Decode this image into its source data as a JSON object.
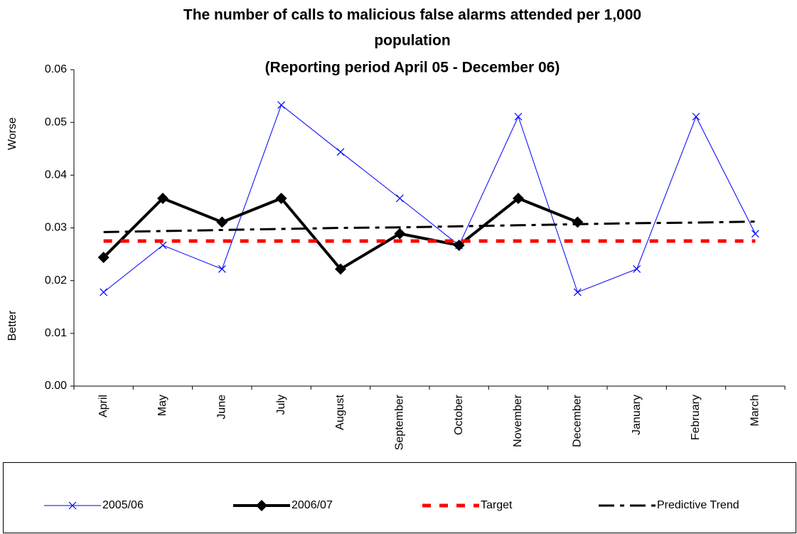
{
  "chart_data": {
    "type": "line",
    "title": [
      "The number of calls to malicious false alarms attended per 1,000",
      "population",
      "(Reporting period  April 05 - December 06)"
    ],
    "annotations": [
      "Worse",
      "Better"
    ],
    "categories": [
      "April",
      "May",
      "June",
      "July",
      "August",
      "September",
      "October",
      "November",
      "December",
      "January",
      "February",
      "March"
    ],
    "series": [
      {
        "name": "2005/06",
        "color": "#0000ff",
        "marker": "x",
        "style": "solid",
        "values": [
          0.0178,
          0.0267,
          0.0222,
          0.0533,
          0.0444,
          0.0356,
          0.0267,
          0.0511,
          0.0178,
          0.0222,
          0.0511,
          0.0289
        ]
      },
      {
        "name": "2006/07",
        "color": "#000000",
        "marker": "diamond",
        "style": "solid",
        "values": [
          0.0244,
          0.0356,
          0.0311,
          0.0356,
          0.0222,
          0.0289,
          0.0267,
          0.0356,
          0.0311,
          null,
          null,
          null
        ]
      },
      {
        "name": "Target",
        "color": "#ff0000",
        "marker": "none",
        "style": "dash",
        "values": [
          0.0275,
          0.0275,
          0.0275,
          0.0275,
          0.0275,
          0.0275,
          0.0275,
          0.0275,
          0.0275,
          0.0275,
          0.0275,
          0.0275
        ]
      },
      {
        "name": "Predictive Trend",
        "color": "#000000",
        "marker": "none",
        "style": "dashdot",
        "values": [
          0.0292,
          0.0294,
          0.0296,
          0.0298,
          0.03,
          0.0301,
          0.0303,
          0.0305,
          0.0307,
          0.0309,
          0.031,
          0.0312
        ]
      }
    ],
    "ylim": [
      0,
      0.06
    ],
    "yticks": [
      {
        "value": 0,
        "label": "0.00"
      },
      0.01,
      0.02,
      0.03,
      0.04,
      0.05,
      0.06
    ],
    "grid": false,
    "legend": "bottom"
  }
}
